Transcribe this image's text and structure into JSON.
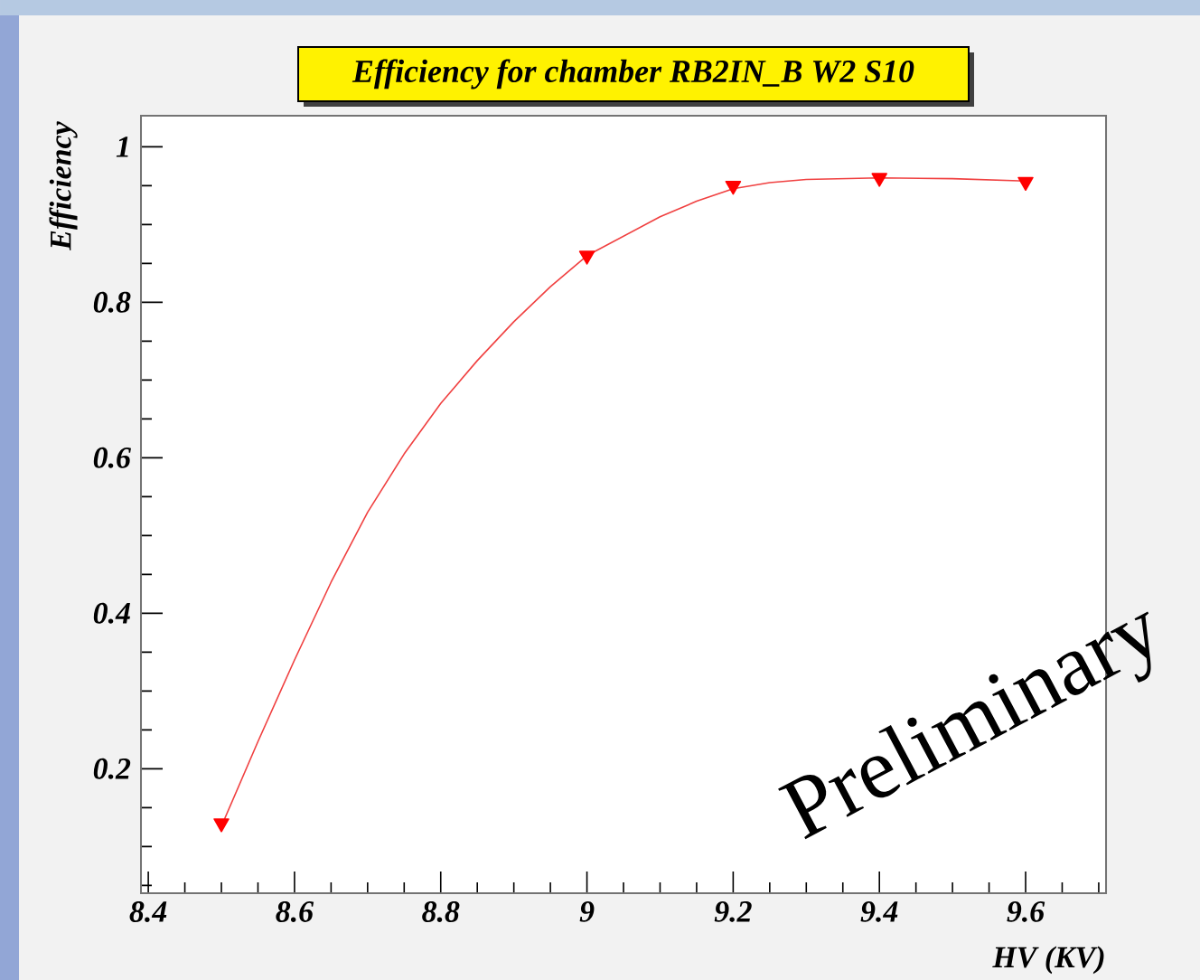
{
  "chart_data": {
    "type": "scatter",
    "title": "Efficiency for chamber RB2IN_B W2 S10",
    "xlabel": "HV (KV)",
    "ylabel": "Efficiency",
    "annotations": [
      "Preliminary"
    ],
    "xlim": [
      8.39,
      9.71
    ],
    "ylim": [
      0.04,
      1.04
    ],
    "xticks": [
      8.4,
      {
        "value": 8.45,
        "label": null
      },
      {
        "value": 8.5,
        "label": null
      },
      {
        "value": 8.55,
        "label": null
      },
      8.6,
      {
        "value": 8.65,
        "label": null
      },
      {
        "value": 8.7,
        "label": null
      },
      {
        "value": 8.75,
        "label": null
      },
      8.8,
      {
        "value": 8.85,
        "label": null
      },
      {
        "value": 8.9,
        "label": null
      },
      {
        "value": 8.95,
        "label": null
      },
      9,
      {
        "value": 9.05,
        "label": null
      },
      {
        "value": 9.1,
        "label": null
      },
      {
        "value": 9.15,
        "label": null
      },
      9.2,
      {
        "value": 9.25,
        "label": null
      },
      {
        "value": 9.3,
        "label": null
      },
      {
        "value": 9.35,
        "label": null
      },
      9.4,
      {
        "value": 9.45,
        "label": null
      },
      {
        "value": 9.5,
        "label": null
      },
      {
        "value": 9.55,
        "label": null
      },
      9.6,
      {
        "value": 9.65,
        "label": null
      },
      {
        "value": 9.7,
        "label": null
      }
    ],
    "yticks": [
      {
        "value": 0.05,
        "label": null
      },
      {
        "value": 0.1,
        "label": null
      },
      {
        "value": 0.15,
        "label": null
      },
      0.2,
      {
        "value": 0.25,
        "label": null
      },
      {
        "value": 0.3,
        "label": null
      },
      {
        "value": 0.35,
        "label": null
      },
      0.4,
      {
        "value": 0.45,
        "label": null
      },
      {
        "value": 0.5,
        "label": null
      },
      {
        "value": 0.55,
        "label": null
      },
      0.6,
      {
        "value": 0.65,
        "label": null
      },
      {
        "value": 0.7,
        "label": null
      },
      {
        "value": 0.75,
        "label": null
      },
      0.8,
      {
        "value": 0.85,
        "label": null
      },
      {
        "value": 0.9,
        "label": null
      },
      {
        "value": 0.95,
        "label": null
      },
      1
    ],
    "series": [
      {
        "type": "line",
        "color": "#f04040",
        "marker": "none",
        "line_style": "solid",
        "x": [
          8.5,
          8.55,
          8.6,
          8.65,
          8.7,
          8.75,
          8.8,
          8.85,
          8.9,
          8.95,
          9.0,
          9.05,
          9.1,
          9.15,
          9.2,
          9.25,
          9.3,
          9.4,
          9.5,
          9.6
        ],
        "values": [
          0.126,
          0.235,
          0.34,
          0.44,
          0.53,
          0.605,
          0.67,
          0.725,
          0.775,
          0.82,
          0.86,
          0.885,
          0.91,
          0.93,
          0.946,
          0.954,
          0.958,
          0.96,
          0.959,
          0.956
        ]
      },
      {
        "color": "#ff0000",
        "marker": "triangle",
        "x": [
          8.5,
          9.0,
          9.2,
          9.4,
          9.6
        ],
        "values": [
          0.13,
          0.86,
          0.95,
          0.96,
          0.955
        ]
      }
    ]
  }
}
